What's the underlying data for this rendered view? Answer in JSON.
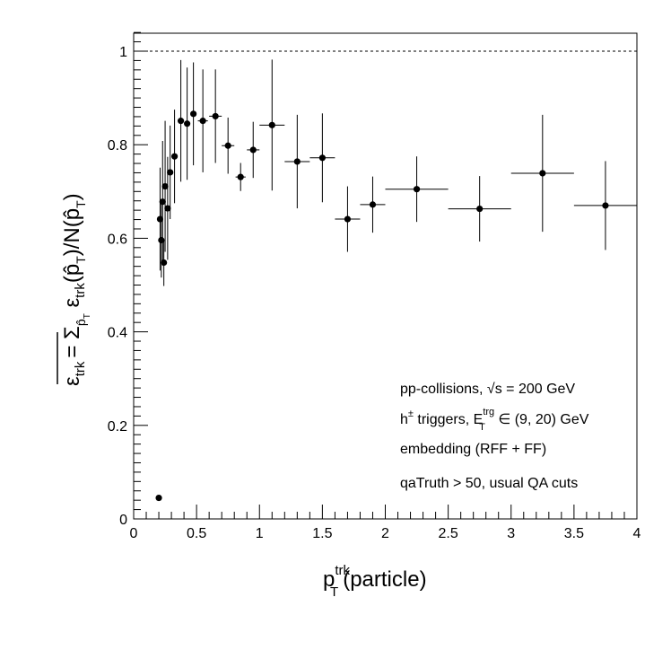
{
  "chart_data": {
    "type": "scatter",
    "xlim": [
      0,
      4
    ],
    "ylim": [
      0,
      1.05
    ],
    "x_ticks": [
      0,
      0.5,
      1,
      1.5,
      2,
      2.5,
      3,
      3.5,
      4
    ],
    "x_tick_labels": [
      "0",
      "0.5",
      "1",
      "1.5",
      "2",
      "2.5",
      "3",
      "3.5",
      "4"
    ],
    "y_ticks": [
      0,
      0.2,
      0.4,
      0.6,
      0.8,
      1
    ],
    "y_tick_labels": [
      "0",
      "0.2",
      "0.4",
      "0.6",
      "0.8",
      "1"
    ],
    "reference_line": {
      "y": 1,
      "style": "dashed"
    },
    "xlabel": {
      "main": "p",
      "sup": "trk",
      "sub": "T",
      "suffix": "(particle)"
    },
    "ylabel": {
      "eps": "ε",
      "eps_sub": "trk",
      "equals": "= Σ",
      "sum_sub": "p̂",
      "sum_sub_sub": "T",
      "eps2": " ε",
      "eps2_sub": "trk",
      "open": "(p̂",
      "open_sub": "T",
      "mid": ")/N(p̂",
      "mid_sub": "T",
      "close": ")"
    },
    "legend": {
      "line1": "pp-collisions, √s = 200 GeV",
      "line2_pre": "h",
      "line2_sup": "±",
      "line2_mid": " triggers, E",
      "line2_sup2": "trg",
      "line2_sub2": "T",
      "line2_post": " ∈ (9, 20) GeV",
      "line3": "embedding (RFF + FF)",
      "line4": "qaTruth > 50, usual QA cuts"
    },
    "series": [
      {
        "marker": "filled-circle",
        "color": "#000000",
        "points": [
          {
            "x": 0.2,
            "y": 0.045,
            "xerr": 0.005,
            "yerr": 0.0
          },
          {
            "x": 0.21,
            "y": 0.641,
            "xerr": 0.005,
            "yerr": 0.11
          },
          {
            "x": 0.22,
            "y": 0.596,
            "xerr": 0.005,
            "yerr": 0.08
          },
          {
            "x": 0.23,
            "y": 0.678,
            "xerr": 0.005,
            "yerr": 0.13
          },
          {
            "x": 0.24,
            "y": 0.548,
            "xerr": 0.005,
            "yerr": 0.05
          },
          {
            "x": 0.25,
            "y": 0.711,
            "xerr": 0.005,
            "yerr": 0.14
          },
          {
            "x": 0.27,
            "y": 0.664,
            "xerr": 0.01,
            "yerr": 0.11
          },
          {
            "x": 0.29,
            "y": 0.741,
            "xerr": 0.01,
            "yerr": 0.1
          },
          {
            "x": 0.325,
            "y": 0.775,
            "xerr": 0.015,
            "yerr": 0.1
          },
          {
            "x": 0.375,
            "y": 0.851,
            "xerr": 0.02,
            "yerr": 0.13
          },
          {
            "x": 0.425,
            "y": 0.845,
            "xerr": 0.02,
            "yerr": 0.12
          },
          {
            "x": 0.475,
            "y": 0.866,
            "xerr": 0.02,
            "yerr": 0.11
          },
          {
            "x": 0.55,
            "y": 0.851,
            "xerr": 0.04,
            "yerr": 0.11
          },
          {
            "x": 0.65,
            "y": 0.861,
            "xerr": 0.05,
            "yerr": 0.1
          },
          {
            "x": 0.75,
            "y": 0.798,
            "xerr": 0.05,
            "yerr": 0.06
          },
          {
            "x": 0.85,
            "y": 0.731,
            "xerr": 0.04,
            "yerr": 0.03
          },
          {
            "x": 0.95,
            "y": 0.789,
            "xerr": 0.05,
            "yerr": 0.06
          },
          {
            "x": 1.1,
            "y": 0.842,
            "xerr": 0.1,
            "yerr": 0.14
          },
          {
            "x": 1.3,
            "y": 0.764,
            "xerr": 0.1,
            "yerr": 0.1
          },
          {
            "x": 1.5,
            "y": 0.772,
            "xerr": 0.1,
            "yerr": 0.095
          },
          {
            "x": 1.7,
            "y": 0.641,
            "xerr": 0.1,
            "yerr": 0.07
          },
          {
            "x": 1.9,
            "y": 0.672,
            "xerr": 0.1,
            "yerr": 0.06
          },
          {
            "x": 2.25,
            "y": 0.705,
            "xerr": 0.25,
            "yerr": 0.07
          },
          {
            "x": 2.75,
            "y": 0.663,
            "xerr": 0.25,
            "yerr": 0.07
          },
          {
            "x": 3.25,
            "y": 0.739,
            "xerr": 0.25,
            "yerr": 0.125
          },
          {
            "x": 3.75,
            "y": 0.67,
            "xerr": 0.25,
            "yerr": 0.095
          }
        ]
      }
    ]
  }
}
